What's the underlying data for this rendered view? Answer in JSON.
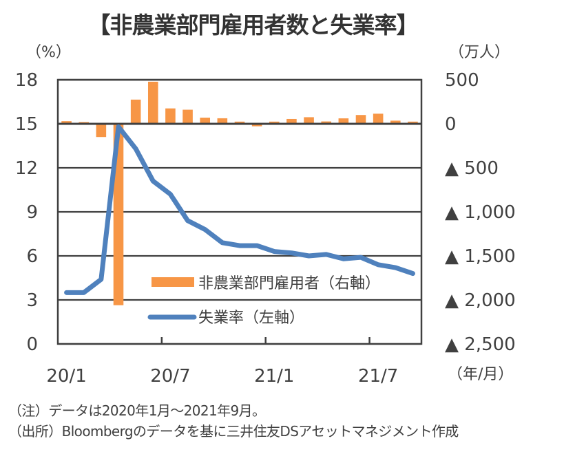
{
  "chart_data": {
    "type": "bar+line",
    "title": "【非農業部門雇用者数と失業率】",
    "categories": [
      "2020/1",
      "2020/2",
      "2020/3",
      "2020/4",
      "2020/5",
      "2020/6",
      "2020/7",
      "2020/8",
      "2020/9",
      "2020/10",
      "2020/11",
      "2020/12",
      "2021/1",
      "2021/2",
      "2021/3",
      "2021/4",
      "2021/5",
      "2021/6",
      "2021/7",
      "2021/8",
      "2021/9"
    ],
    "x_tick_labels": [
      "20/1",
      "20/7",
      "21/1",
      "21/7"
    ],
    "x_tick_label_indices": [
      0,
      6,
      12,
      18
    ],
    "x_tick_mark_indices": [
      6,
      12,
      18
    ],
    "xlabel": "（年/月）",
    "series": [
      {
        "name": "非農業部門雇用者（右軸）",
        "type": "bar",
        "axis": "right",
        "color": "#F79646",
        "values": [
          30,
          20,
          -150,
          -2060,
          275,
          478,
          175,
          160,
          70,
          63,
          25,
          -28,
          25,
          55,
          75,
          27,
          62,
          100,
          115,
          36,
          25
        ]
      },
      {
        "name": "失業率（左軸）",
        "type": "line",
        "axis": "left",
        "color": "#4F81BD",
        "values": [
          3.5,
          3.5,
          4.4,
          14.8,
          13.3,
          11.1,
          10.2,
          8.4,
          7.8,
          6.9,
          6.7,
          6.7,
          6.3,
          6.2,
          6.0,
          6.1,
          5.8,
          5.9,
          5.4,
          5.2,
          4.8
        ]
      }
    ],
    "left_axis": {
      "label": "（%）",
      "ylim": [
        0,
        18
      ],
      "ticks": [
        0,
        3,
        6,
        9,
        12,
        15,
        18
      ],
      "tick_labels": [
        "0",
        "3",
        "6",
        "9",
        "12",
        "15",
        "18"
      ]
    },
    "right_axis": {
      "label": "（万人）",
      "ylim": [
        -2500,
        500
      ],
      "ticks": [
        500,
        0,
        -500,
        -1000,
        -1500,
        -2000,
        -2500
      ],
      "tick_labels": [
        "500",
        "0",
        "▲ 500",
        "▲ 1,000",
        "▲ 1,500",
        "▲ 2,000",
        "▲ 2,500"
      ]
    },
    "grid": true,
    "legend_position": "bottom-right (inside plot)",
    "notes": [
      "（注）データは2020年1月～2021年9月。",
      "（出所）Bloombergのデータを基に三井住友DSアセットマネジメント作成"
    ]
  }
}
